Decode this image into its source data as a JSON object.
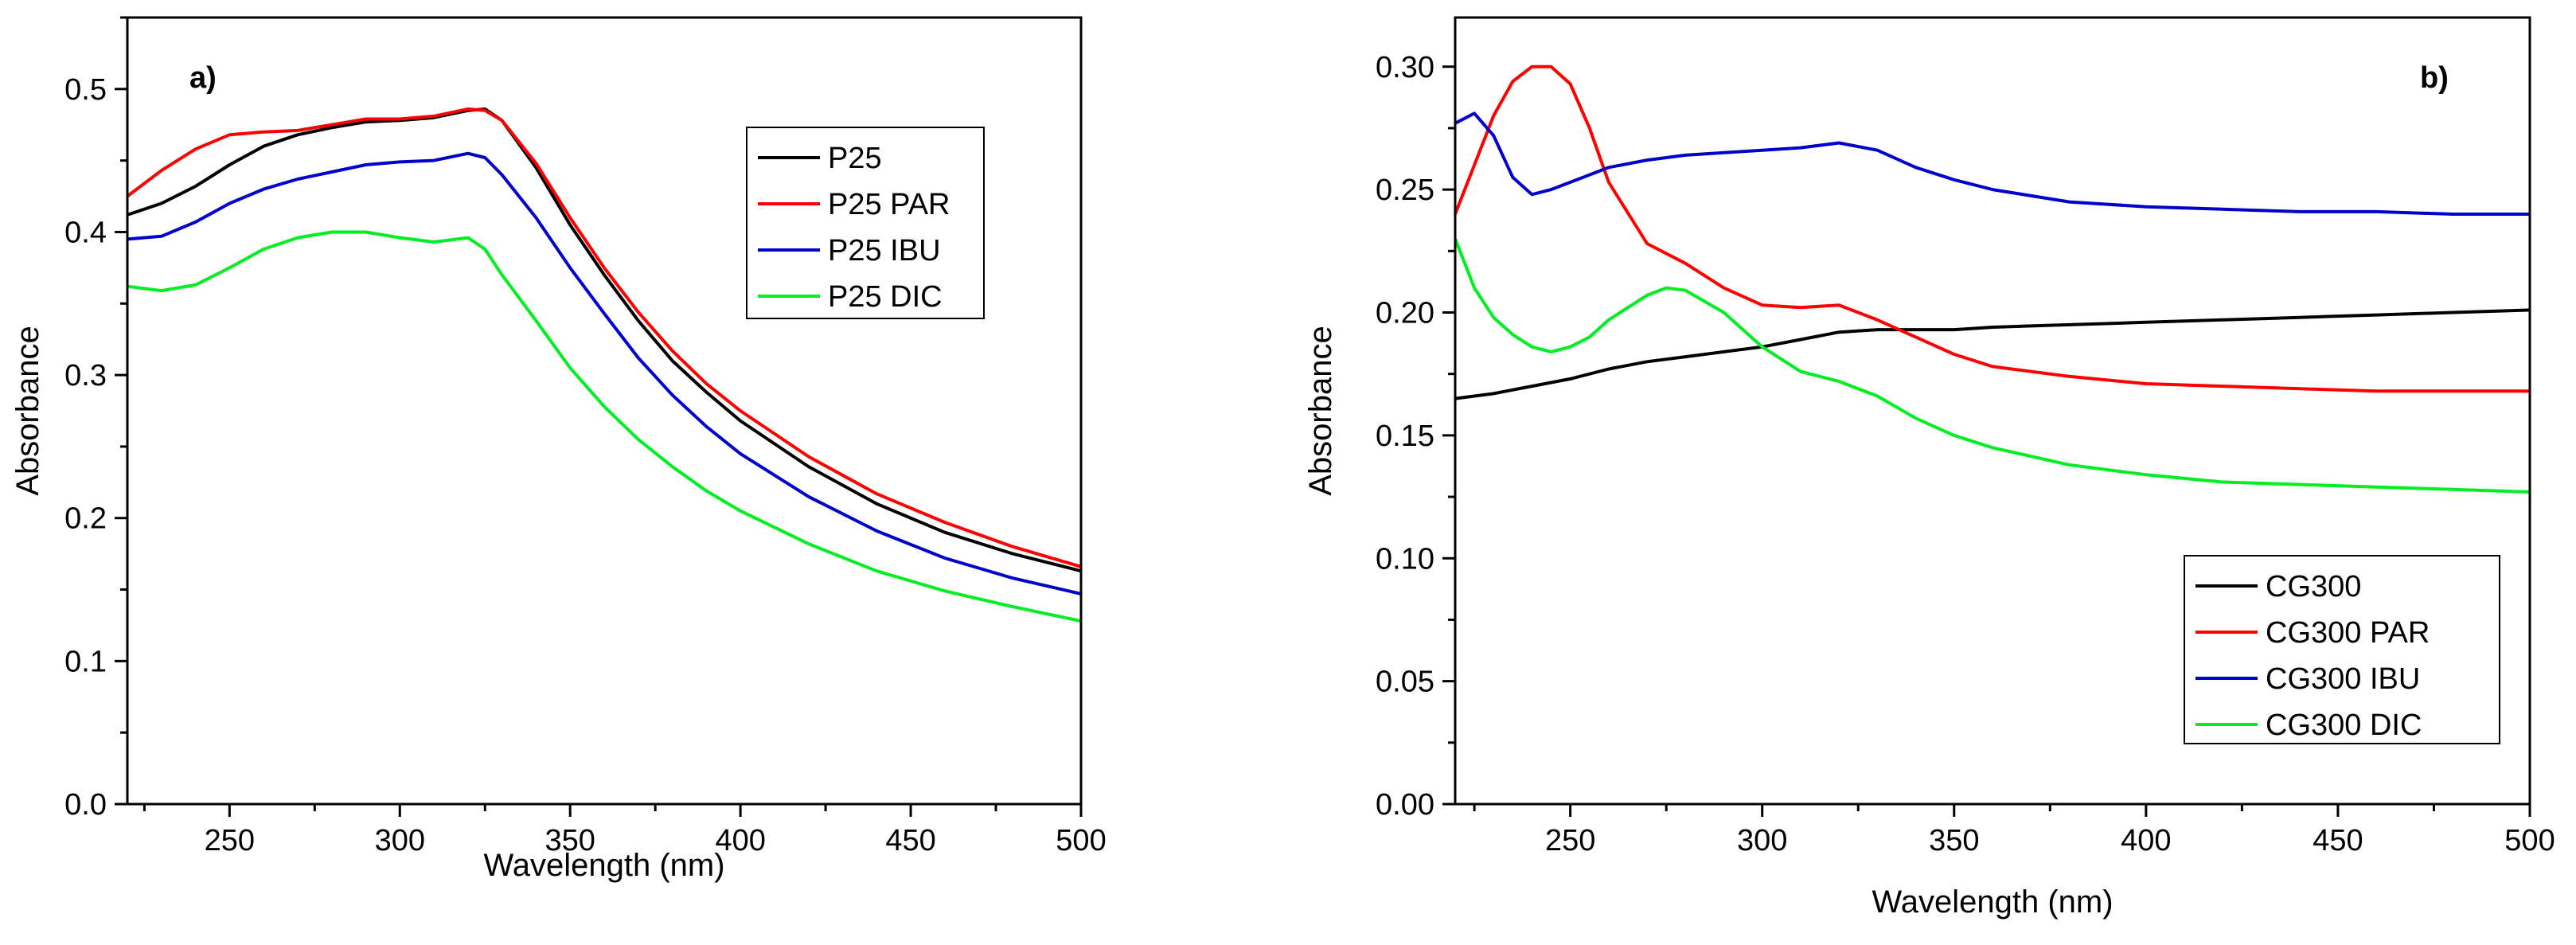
{
  "chart_data": [
    {
      "type": "line",
      "panel_label": "a)",
      "xlabel": "Wavelength (nm)",
      "ylabel": "Absorbance",
      "xlim": [
        220,
        500
      ],
      "ylim": [
        0.0,
        0.55
      ],
      "xticks": [
        250,
        300,
        350,
        400,
        450,
        500
      ],
      "xtick_labels": [
        "250",
        "300",
        "350",
        "400",
        "450",
        "500"
      ],
      "yticks": [
        0.0,
        0.1,
        0.2,
        0.3,
        0.4,
        0.5
      ],
      "ytick_labels": [
        "0.0",
        "0.1",
        "0.2",
        "0.3",
        "0.4",
        "0.5"
      ],
      "legend_position": "top-right",
      "series": [
        {
          "name": "P25",
          "color": "#000000",
          "x": [
            220,
            230,
            240,
            250,
            260,
            270,
            280,
            290,
            300,
            310,
            320,
            325,
            330,
            340,
            350,
            360,
            370,
            380,
            390,
            400,
            420,
            440,
            460,
            480,
            500
          ],
          "y": [
            0.412,
            0.42,
            0.432,
            0.447,
            0.46,
            0.468,
            0.473,
            0.477,
            0.478,
            0.48,
            0.485,
            0.486,
            0.478,
            0.445,
            0.405,
            0.37,
            0.338,
            0.31,
            0.288,
            0.268,
            0.236,
            0.21,
            0.19,
            0.175,
            0.163
          ]
        },
        {
          "name": "P25 PAR",
          "color": "#ff0000",
          "x": [
            220,
            230,
            240,
            250,
            260,
            270,
            280,
            290,
            300,
            310,
            320,
            325,
            330,
            340,
            350,
            360,
            370,
            380,
            390,
            400,
            420,
            440,
            460,
            480,
            500
          ],
          "y": [
            0.425,
            0.443,
            0.458,
            0.468,
            0.47,
            0.471,
            0.475,
            0.479,
            0.479,
            0.481,
            0.486,
            0.485,
            0.478,
            0.448,
            0.41,
            0.375,
            0.344,
            0.317,
            0.294,
            0.275,
            0.243,
            0.217,
            0.197,
            0.18,
            0.166
          ]
        },
        {
          "name": "P25 IBU",
          "color": "#0000cc",
          "x": [
            220,
            230,
            240,
            250,
            260,
            270,
            280,
            290,
            300,
            310,
            320,
            325,
            330,
            340,
            350,
            360,
            370,
            380,
            390,
            400,
            420,
            440,
            460,
            480,
            500
          ],
          "y": [
            0.395,
            0.397,
            0.407,
            0.42,
            0.43,
            0.437,
            0.442,
            0.447,
            0.449,
            0.45,
            0.455,
            0.452,
            0.44,
            0.41,
            0.375,
            0.343,
            0.312,
            0.286,
            0.264,
            0.245,
            0.215,
            0.191,
            0.172,
            0.158,
            0.147
          ]
        },
        {
          "name": "P25 DIC",
          "color": "#00ee22",
          "x": [
            220,
            230,
            240,
            250,
            260,
            270,
            280,
            290,
            300,
            310,
            320,
            325,
            330,
            340,
            350,
            360,
            370,
            380,
            390,
            400,
            420,
            440,
            460,
            480,
            500
          ],
          "y": [
            0.362,
            0.359,
            0.363,
            0.375,
            0.388,
            0.396,
            0.4,
            0.4,
            0.396,
            0.393,
            0.396,
            0.388,
            0.37,
            0.338,
            0.305,
            0.278,
            0.255,
            0.236,
            0.219,
            0.205,
            0.182,
            0.163,
            0.149,
            0.138,
            0.128
          ]
        }
      ]
    },
    {
      "type": "line",
      "panel_label": "b)",
      "xlabel": "Wavelength (nm)",
      "ylabel": "Absorbance",
      "xlim": [
        220,
        500
      ],
      "ylim": [
        0.0,
        0.32
      ],
      "xticks": [
        250,
        300,
        350,
        400,
        450,
        500
      ],
      "xtick_labels": [
        "250",
        "300",
        "350",
        "400",
        "450",
        "500"
      ],
      "yticks": [
        0.0,
        0.05,
        0.1,
        0.15,
        0.2,
        0.25,
        0.3
      ],
      "ytick_labels": [
        "0.00",
        "0.05",
        "0.10",
        "0.15",
        "0.20",
        "0.25",
        "0.30"
      ],
      "legend_position": "bottom-right",
      "series": [
        {
          "name": "CG300",
          "color": "#000000",
          "x": [
            220,
            230,
            240,
            250,
            260,
            270,
            280,
            290,
            300,
            310,
            320,
            330,
            340,
            350,
            360,
            380,
            400,
            420,
            440,
            460,
            480,
            500
          ],
          "y": [
            0.165,
            0.167,
            0.17,
            0.173,
            0.177,
            0.18,
            0.182,
            0.184,
            0.186,
            0.189,
            0.192,
            0.193,
            0.193,
            0.193,
            0.194,
            0.195,
            0.196,
            0.197,
            0.198,
            0.199,
            0.2,
            0.201
          ]
        },
        {
          "name": "CG300 PAR",
          "color": "#ff0000",
          "x": [
            220,
            225,
            230,
            235,
            240,
            245,
            250,
            255,
            260,
            270,
            280,
            290,
            300,
            310,
            320,
            330,
            340,
            350,
            360,
            380,
            400,
            420,
            440,
            460,
            480,
            500
          ],
          "y": [
            0.24,
            0.26,
            0.28,
            0.294,
            0.3,
            0.3,
            0.293,
            0.275,
            0.253,
            0.228,
            0.22,
            0.21,
            0.203,
            0.202,
            0.203,
            0.197,
            0.19,
            0.183,
            0.178,
            0.174,
            0.171,
            0.17,
            0.169,
            0.168,
            0.168,
            0.168
          ]
        },
        {
          "name": "CG300 IBU",
          "color": "#0000cc",
          "x": [
            220,
            225,
            230,
            235,
            240,
            245,
            250,
            255,
            260,
            270,
            280,
            290,
            300,
            310,
            320,
            330,
            340,
            350,
            360,
            380,
            400,
            420,
            440,
            460,
            480,
            500
          ],
          "y": [
            0.277,
            0.281,
            0.272,
            0.255,
            0.248,
            0.25,
            0.253,
            0.256,
            0.259,
            0.262,
            0.264,
            0.265,
            0.266,
            0.267,
            0.269,
            0.266,
            0.259,
            0.254,
            0.25,
            0.245,
            0.243,
            0.242,
            0.241,
            0.241,
            0.24,
            0.24
          ]
        },
        {
          "name": "CG300 DIC",
          "color": "#00ee22",
          "x": [
            220,
            225,
            230,
            235,
            240,
            245,
            250,
            255,
            260,
            270,
            275,
            280,
            290,
            300,
            310,
            320,
            330,
            340,
            350,
            360,
            380,
            400,
            420,
            440,
            460,
            480,
            500
          ],
          "y": [
            0.23,
            0.21,
            0.198,
            0.191,
            0.186,
            0.184,
            0.186,
            0.19,
            0.197,
            0.207,
            0.21,
            0.209,
            0.2,
            0.186,
            0.176,
            0.172,
            0.166,
            0.157,
            0.15,
            0.145,
            0.138,
            0.134,
            0.131,
            0.13,
            0.129,
            0.128,
            0.127
          ]
        }
      ]
    }
  ]
}
